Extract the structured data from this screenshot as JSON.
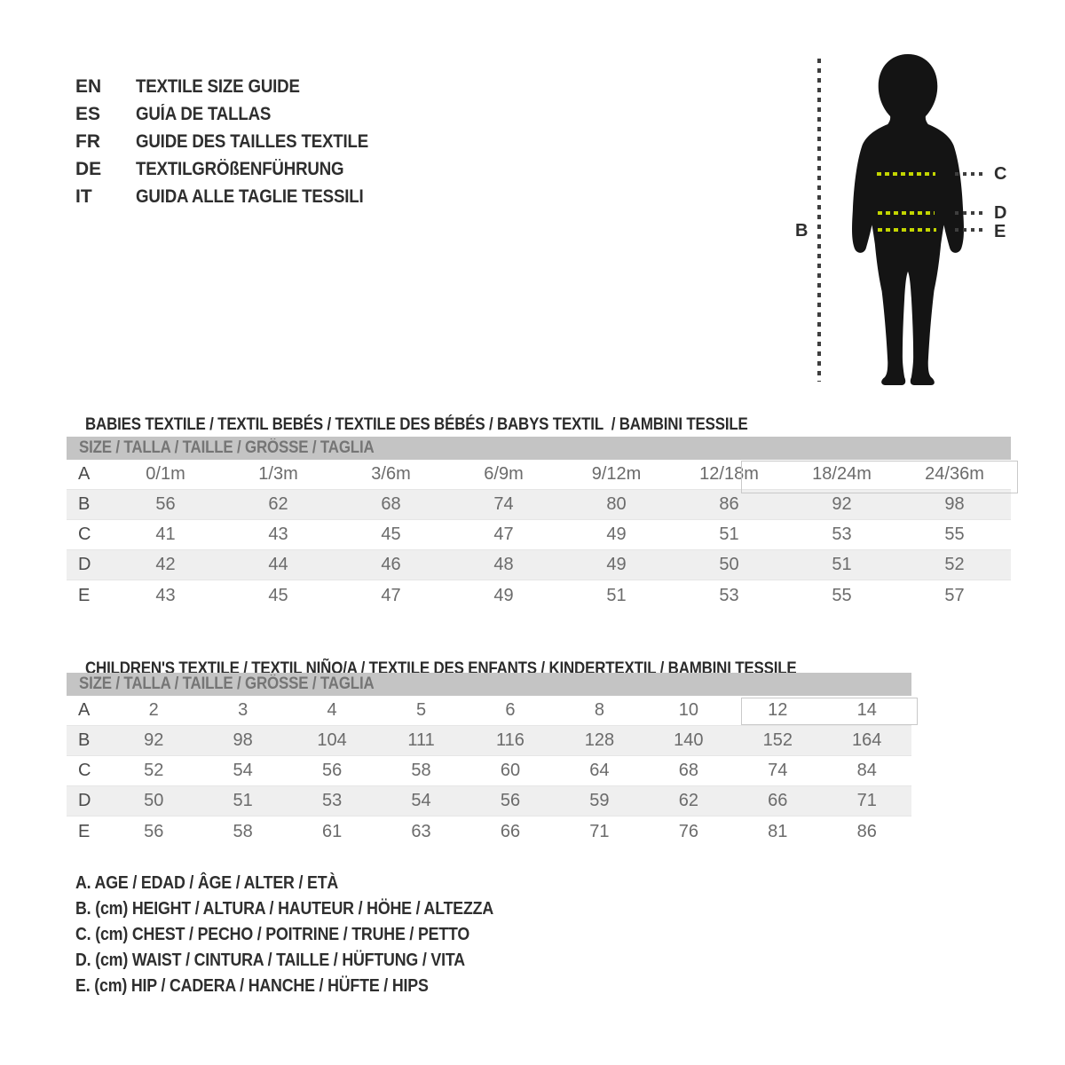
{
  "languages": [
    {
      "code": "EN",
      "label": "TEXTILE SIZE GUIDE"
    },
    {
      "code": "ES",
      "label": "GUÍA DE TALLAS"
    },
    {
      "code": "FR",
      "label": "GUIDE DES TAILLES TEXTILE"
    },
    {
      "code": "DE",
      "label": "TEXTILGRÖßENFÜHRUNG"
    },
    {
      "code": "IT",
      "label": "GUIDA ALLE TAGLIE TESSILI"
    }
  ],
  "figure": {
    "height_label": "B",
    "chest_label": "C",
    "waist_label": "D",
    "hip_label": "E",
    "measure_line_color": "#c3d500",
    "silhouette_color": "#141414"
  },
  "babies_section": {
    "title": "BABIES TEXTILE / TEXTIL BEBÉS / TEXTILE DES BÉBÉS / BABYS TEXTIL  / BAMBINI TESSILE",
    "table_header": "SIZE / TALLA / TAILLE / GRÖSSE / TAGLIA",
    "rows": [
      {
        "key": "A",
        "values": [
          "0/1m",
          "1/3m",
          "3/6m",
          "6/9m",
          "9/12m",
          "12/18m",
          "18/24m",
          "24/36m"
        ]
      },
      {
        "key": "B",
        "values": [
          "56",
          "62",
          "68",
          "74",
          "80",
          "86",
          "92",
          "98"
        ]
      },
      {
        "key": "C",
        "values": [
          "41",
          "43",
          "45",
          "47",
          "49",
          "51",
          "53",
          "55"
        ]
      },
      {
        "key": "D",
        "values": [
          "42",
          "44",
          "46",
          "48",
          "49",
          "50",
          "51",
          "52"
        ]
      },
      {
        "key": "E",
        "values": [
          "43",
          "45",
          "47",
          "49",
          "51",
          "53",
          "55",
          "57"
        ]
      }
    ]
  },
  "children_section": {
    "title": "CHILDREN'S TEXTILE / TEXTIL NIÑO/A / TEXTILE DES ENFANTS / KINDERTEXTIL / BAMBINI TESSILE",
    "table_header": "SIZE / TALLA / TAILLE / GRÖSSE / TAGLIA",
    "rows": [
      {
        "key": "A",
        "values": [
          "2",
          "3",
          "4",
          "5",
          "6",
          "8",
          "10",
          "12",
          "14"
        ]
      },
      {
        "key": "B",
        "values": [
          "92",
          "98",
          "104",
          "111",
          "116",
          "128",
          "140",
          "152",
          "164"
        ]
      },
      {
        "key": "C",
        "values": [
          "52",
          "54",
          "56",
          "58",
          "60",
          "64",
          "68",
          "74",
          "84"
        ]
      },
      {
        "key": "D",
        "values": [
          "50",
          "51",
          "53",
          "54",
          "56",
          "59",
          "62",
          "66",
          "71"
        ]
      },
      {
        "key": "E",
        "values": [
          "56",
          "58",
          "61",
          "63",
          "66",
          "71",
          "76",
          "81",
          "86"
        ]
      }
    ]
  },
  "legend": {
    "items": [
      "A. AGE / EDAD / ÂGE / ALTER / ETÀ",
      "B. (cm) HEIGHT / ALTURA / HAUTEUR / HÖHE / ALTEZZA",
      "C. (cm) CHEST / PECHO / POITRINE / TRUHE / PETTO",
      "D. (cm) WAIST / CINTURA / TAILLE / HÜFTUNG / VITA",
      "E. (cm) HIP / CADERA / HANCHE / HÜFTE / HIPS"
    ]
  },
  "colors": {
    "header_bar": "#c4c4c4",
    "row_stripe": "#efefef",
    "table_text": "#6b6b6b",
    "accent_green": "#c3d500",
    "dotted_line": "#3e3e3e"
  }
}
